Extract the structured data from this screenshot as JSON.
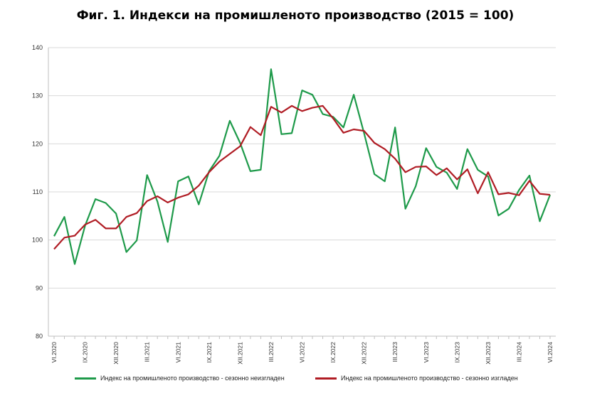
{
  "chart_data": {
    "type": "line",
    "title": "Фиг. 1. Индекси на промишленото производство (2015 = 100)",
    "xlabel": "",
    "ylabel": "",
    "ylim": [
      80,
      140
    ],
    "yticks": [
      80,
      90,
      100,
      110,
      120,
      130,
      140
    ],
    "grid": true,
    "legend_position": "bottom",
    "x": [
      "VI.2020",
      "VII.2020",
      "VIII.2020",
      "IX.2020",
      "X.2020",
      "XI.2020",
      "XII.2020",
      "I.2021",
      "II.2021",
      "III.2021",
      "IV.2021",
      "V.2021",
      "VI.2021",
      "VII.2021",
      "VIII.2021",
      "IX.2021",
      "X.2021",
      "XI.2021",
      "XII.2021",
      "I.2022",
      "II.2022",
      "III.2022",
      "IV.2022",
      "V.2022",
      "VI.2022",
      "VII.2022",
      "VIII.2022",
      "IX.2022",
      "X.2022",
      "XI.2022",
      "XII.2022",
      "I.2023",
      "II.2023",
      "III.2023",
      "IV.2023",
      "V.2023",
      "VI.2023",
      "VII.2023",
      "VIII.2023",
      "IX.2023",
      "X.2023",
      "XI.2023",
      "XII.2023",
      "I.2024",
      "II.2024",
      "III.2024",
      "IV.2024",
      "V.2024",
      "VI.2024"
    ],
    "tick_labels": [
      "VI.2020",
      "IX.2020",
      "XII.2020",
      "III.2021",
      "VI.2021",
      "IX.2021",
      "XII.2021",
      "III.2022",
      "VI.2022",
      "IX.2022",
      "XII.2022",
      "III.2023",
      "VI.2023",
      "IX.2023",
      "XII.2023",
      "III.2024",
      "VI.2024"
    ],
    "series": [
      {
        "name": "Индекс на промишленото производство - сезонно  неизгладен",
        "color": "#1e9a4a",
        "values": [
          100.8,
          104.8,
          95.0,
          103.0,
          108.5,
          107.7,
          105.5,
          97.5,
          99.9,
          113.5,
          108.0,
          99.6,
          112.2,
          113.2,
          107.4,
          114.3,
          117.5,
          124.8,
          120.2,
          114.3,
          114.6,
          135.5,
          122.0,
          122.2,
          131.1,
          130.2,
          126.2,
          125.6,
          123.4,
          130.2,
          122.2,
          113.7,
          112.2,
          123.4,
          106.5,
          111.2,
          119.1,
          115.2,
          114.0,
          110.6,
          118.9,
          114.6,
          113.2,
          105.1,
          106.5,
          110.4,
          113.4,
          103.9,
          109.4
        ]
      },
      {
        "name": "Индекс на промишленото производство - сезонно изгладен",
        "color": "#b01c24",
        "values": [
          98.1,
          100.5,
          100.9,
          103.2,
          104.2,
          102.4,
          102.4,
          104.8,
          105.6,
          108.1,
          109.1,
          107.8,
          108.8,
          109.5,
          111.3,
          114.1,
          116.3,
          117.9,
          119.5,
          123.5,
          121.8,
          127.7,
          126.5,
          127.9,
          126.8,
          127.5,
          127.9,
          125.3,
          122.3,
          123.0,
          122.7,
          120.2,
          118.9,
          116.9,
          114.1,
          115.2,
          115.3,
          113.5,
          114.9,
          112.6,
          114.7,
          109.7,
          114.1,
          109.5,
          109.8,
          109.3,
          112.3,
          109.6,
          109.4
        ]
      }
    ]
  }
}
